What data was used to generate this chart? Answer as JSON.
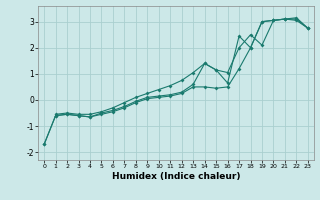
{
  "title": "",
  "xlabel": "Humidex (Indice chaleur)",
  "background_color": "#cce8e8",
  "grid_color": "#aacfcf",
  "line_color": "#1a7a6e",
  "xlim": [
    -0.5,
    23.5
  ],
  "ylim": [
    -2.3,
    3.6
  ],
  "x_ticks": [
    0,
    1,
    2,
    3,
    4,
    5,
    6,
    7,
    8,
    9,
    10,
    11,
    12,
    13,
    14,
    15,
    16,
    17,
    18,
    19,
    20,
    21,
    22,
    23
  ],
  "y_ticks": [
    -2,
    -1,
    0,
    1,
    2,
    3
  ],
  "line1_x": [
    0,
    1,
    2,
    3,
    4,
    5,
    6,
    7,
    8,
    9,
    10,
    11,
    12,
    13,
    14,
    15,
    16,
    17,
    18,
    19,
    20,
    21,
    22,
    23
  ],
  "line1_y": [
    -1.7,
    -0.6,
    -0.55,
    -0.6,
    -0.65,
    -0.55,
    -0.45,
    -0.3,
    -0.1,
    0.05,
    0.1,
    0.15,
    0.25,
    0.5,
    0.5,
    0.45,
    0.5,
    1.2,
    2.0,
    3.0,
    3.05,
    3.1,
    3.05,
    2.75
  ],
  "line2_x": [
    0,
    1,
    2,
    3,
    4,
    5,
    6,
    7,
    8,
    9,
    10,
    11,
    12,
    13,
    14,
    15,
    16,
    17,
    18,
    19,
    20,
    21,
    22,
    23
  ],
  "line2_y": [
    -1.7,
    -0.6,
    -0.55,
    -0.6,
    -0.65,
    -0.5,
    -0.4,
    -0.25,
    -0.05,
    0.1,
    0.15,
    0.2,
    0.3,
    0.6,
    1.4,
    1.15,
    0.65,
    2.45,
    2.0,
    3.0,
    3.05,
    3.1,
    3.1,
    2.75
  ],
  "line3_x": [
    1,
    2,
    3,
    4,
    5,
    6,
    7,
    8,
    9,
    10,
    11,
    12,
    13,
    14,
    15,
    16,
    17,
    18,
    19,
    20,
    21,
    22,
    23
  ],
  "line3_y": [
    -0.55,
    -0.5,
    -0.55,
    -0.55,
    -0.45,
    -0.3,
    -0.1,
    0.1,
    0.25,
    0.4,
    0.55,
    0.75,
    1.05,
    1.4,
    1.15,
    1.05,
    2.0,
    2.5,
    2.1,
    3.05,
    3.1,
    3.15,
    2.75
  ]
}
